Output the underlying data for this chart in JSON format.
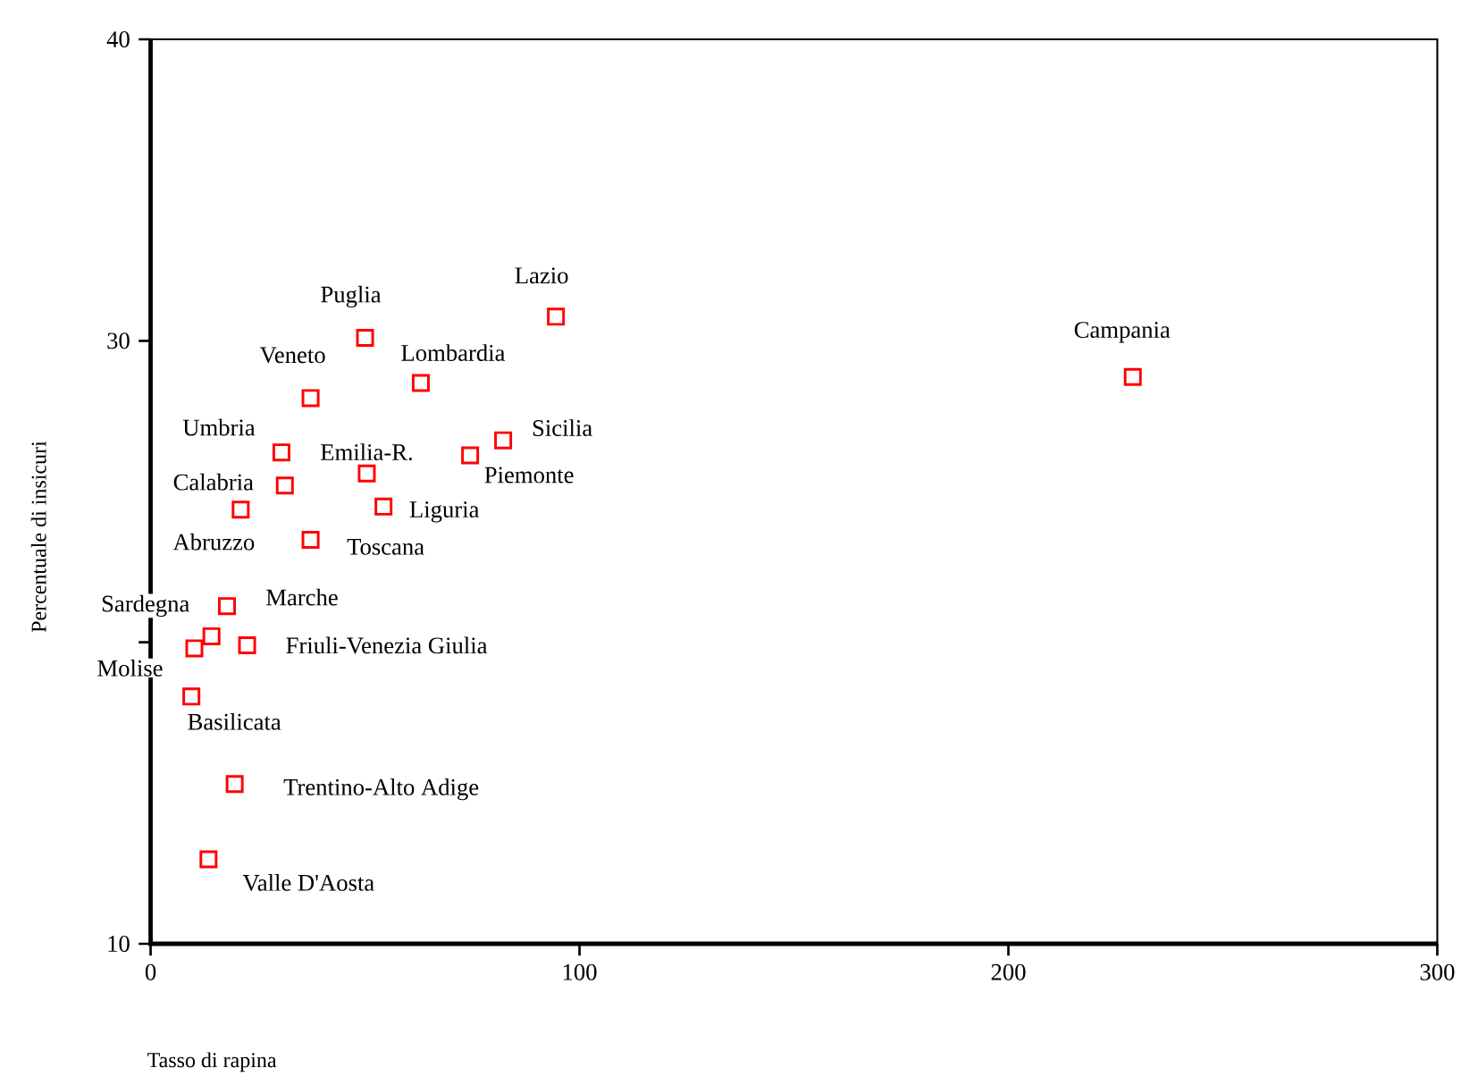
{
  "chart_data": {
    "type": "scatter",
    "xlabel": "Tasso di rapina",
    "ylabel": "Percentuale di insicuri",
    "x": [
      50,
      94.5,
      63,
      37.3,
      30.5,
      82.2,
      74.5,
      50.4,
      31.3,
      54.3,
      21,
      37.3,
      17.8,
      14.2,
      10.2,
      22.5,
      9.5,
      19.6,
      13.5,
      229
    ],
    "values": [
      30.1,
      30.8,
      28.6,
      28.1,
      26.3,
      26.7,
      26.2,
      25.6,
      25.2,
      24.5,
      24.4,
      23.4,
      21.2,
      20.2,
      19.8,
      19.9,
      18.2,
      15.3,
      12.8,
      28.8
    ],
    "color": "#ff0000",
    "marker": "square",
    "xlim": [
      0,
      300
    ],
    "ylim": [
      10,
      40
    ],
    "xticks": [
      0,
      100,
      200,
      300
    ],
    "yticks": [
      10,
      {
        "value": 20,
        "label": null
      },
      30,
      40
    ],
    "annotations": [
      {
        "text": "Puglia",
        "x": 50,
        "y": 30.1
      },
      {
        "text": "Lazio",
        "x": 94.5,
        "y": 30.8
      },
      {
        "text": "Lombardia",
        "x": 63,
        "y": 28.6
      },
      {
        "text": "Veneto",
        "x": 37.3,
        "y": 28.1
      },
      {
        "text": "Umbria",
        "x": 30.5,
        "y": 26.3
      },
      {
        "text": "Sicilia",
        "x": 82.2,
        "y": 26.7
      },
      {
        "text": "Piemonte",
        "x": 74.5,
        "y": 26.2
      },
      {
        "text": "Emilia-R.",
        "x": 50.4,
        "y": 25.6
      },
      {
        "text": "Calabria",
        "x": 31.3,
        "y": 25.2
      },
      {
        "text": "Liguria",
        "x": 54.3,
        "y": 24.5
      },
      {
        "text": "Abruzzo",
        "x": 21,
        "y": 24.4
      },
      {
        "text": "Toscana",
        "x": 37.3,
        "y": 23.4
      },
      {
        "text": "Marche",
        "x": 17.8,
        "y": 21.2
      },
      {
        "text": "Sardegna",
        "x": 14.2,
        "y": 20.2
      },
      {
        "text": "Molise",
        "x": 10.2,
        "y": 19.8
      },
      {
        "text": "Friuli-Venezia Giulia",
        "x": 22.5,
        "y": 19.9
      },
      {
        "text": "Basilicata",
        "x": 9.5,
        "y": 18.2
      },
      {
        "text": "Trentino-Alto Adige",
        "x": 19.6,
        "y": 15.3
      },
      {
        "text": "Valle D'Aosta",
        "x": 13.5,
        "y": 12.8
      },
      {
        "text": "Campania",
        "x": 229,
        "y": 28.8
      }
    ]
  }
}
